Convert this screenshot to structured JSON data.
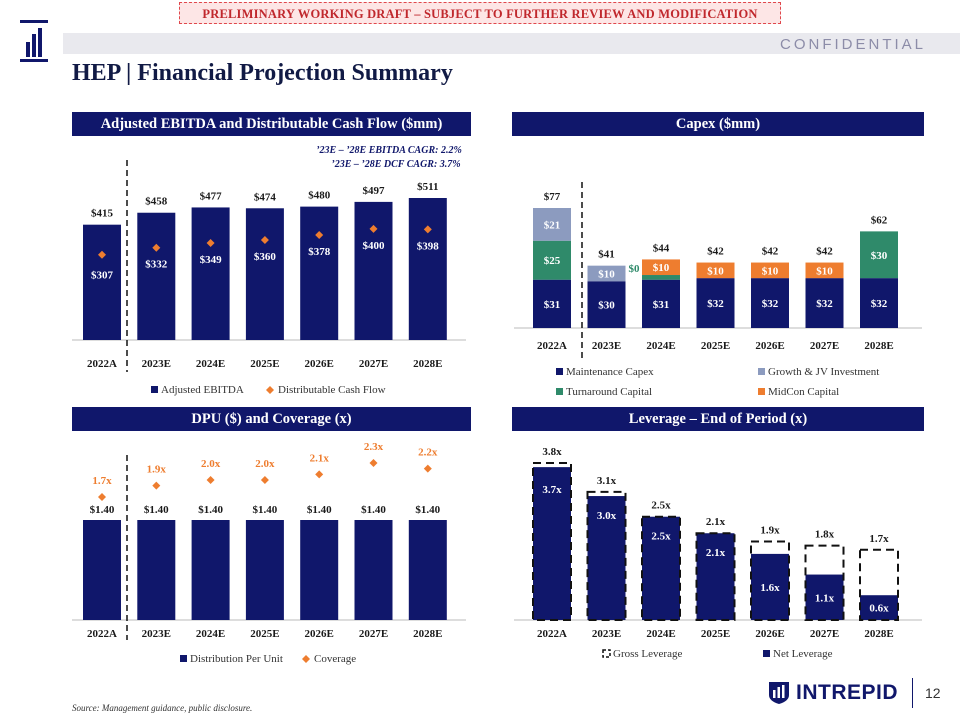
{
  "banner": "PRELIMINARY WORKING DRAFT – SUBJECT TO FURTHER REVIEW AND MODIFICATION",
  "confidential": "CONFIDENTIAL",
  "title": "HEP | Financial Projection Summary",
  "source_note": "Source: Management guidance, public disclosure.",
  "brand": {
    "name": "INTREPID",
    "page": "12"
  },
  "colors": {
    "navy": "#10176b",
    "orange": "#ee7d2f",
    "green": "#2f8a6a",
    "gray": "#8c9bbf",
    "header": "#10176b"
  },
  "panels": {
    "ebitda": "Adjusted EBITDA and Distributable Cash Flow ($mm)",
    "capex": "Capex ($mm)",
    "dpu": "DPU ($) and Coverage (x)",
    "leverage": "Leverage – End of Period (x)"
  },
  "chart_data": [
    {
      "id": "ebitda",
      "type": "bar",
      "title": "Adjusted EBITDA and Distributable Cash Flow ($mm)",
      "categories": [
        "2022A",
        "2023E",
        "2024E",
        "2025E",
        "2026E",
        "2027E",
        "2028E"
      ],
      "series": [
        {
          "name": "Adjusted EBITDA",
          "kind": "bar",
          "values": [
            415,
            458,
            477,
            474,
            480,
            497,
            511
          ],
          "labels": [
            "$415",
            "$458",
            "$477",
            "$474",
            "$480",
            "$497",
            "$511"
          ]
        },
        {
          "name": "Distributable Cash Flow",
          "kind": "marker",
          "values": [
            307,
            332,
            349,
            360,
            378,
            400,
            398
          ],
          "labels": [
            "$307",
            "$332",
            "$349",
            "$360",
            "$378",
            "$400",
            "$398"
          ]
        }
      ],
      "annotations": [
        "’23E – ’28E EBITDA CAGR: 2.2%",
        "’23E – ’28E DCF CAGR: 3.7%"
      ],
      "ylim": [
        0,
        560
      ]
    },
    {
      "id": "capex",
      "type": "bar",
      "stacked": true,
      "title": "Capex ($mm)",
      "categories": [
        "2022A",
        "2023E",
        "2024E",
        "2025E",
        "2026E",
        "2027E",
        "2028E"
      ],
      "series": [
        {
          "name": "Maintenance Capex",
          "values": [
            31,
            30,
            31,
            32,
            32,
            32,
            32
          ]
        },
        {
          "name": "Growth & JV Investment",
          "values": [
            21,
            10,
            0,
            0,
            0,
            0,
            0
          ]
        },
        {
          "name": "Turnaround Capital",
          "values": [
            25,
            0,
            3,
            0,
            0,
            0,
            30
          ]
        },
        {
          "name": "MidCon Capital",
          "values": [
            0,
            0,
            10,
            10,
            10,
            10,
            0
          ]
        }
      ],
      "segment_labels": [
        [
          "$31",
          "$21",
          "$25",
          ""
        ],
        [
          "$30",
          "$10",
          "",
          ""
        ],
        [
          "$31",
          "",
          "$3",
          "$10"
        ],
        [
          "$32",
          "",
          "",
          "$10"
        ],
        [
          "$32",
          "",
          "",
          "$10"
        ],
        [
          "$32",
          "",
          "",
          "$10"
        ],
        [
          "$32",
          "",
          "$30",
          ""
        ]
      ],
      "totals": [
        "$77",
        "$41",
        "$44",
        "$42",
        "$42",
        "$42",
        "$62"
      ],
      "zero_label": "$0",
      "ylim": [
        0,
        90
      ]
    },
    {
      "id": "dpu",
      "type": "bar",
      "title": "DPU ($) and Coverage (x)",
      "categories": [
        "2022A",
        "2023E",
        "2024E",
        "2025E",
        "2026E",
        "2027E",
        "2028E"
      ],
      "series": [
        {
          "name": "Distribution Per Unit",
          "kind": "bar",
          "values": [
            1.4,
            1.4,
            1.4,
            1.4,
            1.4,
            1.4,
            1.4
          ],
          "labels": [
            "$1.40",
            "$1.40",
            "$1.40",
            "$1.40",
            "$1.40",
            "$1.40",
            "$1.40"
          ]
        },
        {
          "name": "Coverage",
          "kind": "marker",
          "values": [
            1.7,
            1.9,
            2.0,
            2.0,
            2.1,
            2.3,
            2.2
          ],
          "labels": [
            "1.7x",
            "1.9x",
            "2.0x",
            "2.0x",
            "2.1x",
            "2.3x",
            "2.2x"
          ]
        }
      ]
    },
    {
      "id": "leverage",
      "type": "bar",
      "title": "Leverage – End of Period (x)",
      "categories": [
        "2022A",
        "2023E",
        "2024E",
        "2025E",
        "2026E",
        "2027E",
        "2028E"
      ],
      "series": [
        {
          "name": "Gross Leverage",
          "kind": "outline",
          "values": [
            3.8,
            3.1,
            2.5,
            2.1,
            1.9,
            1.8,
            1.7
          ],
          "labels": [
            "3.8x",
            "3.1x",
            "2.5x",
            "2.1x",
            "1.9x",
            "1.8x",
            "1.7x"
          ]
        },
        {
          "name": "Net Leverage",
          "kind": "bar",
          "values": [
            3.7,
            3.0,
            2.5,
            2.1,
            1.6,
            1.1,
            0.6
          ],
          "labels": [
            "3.7x",
            "3.0x",
            "2.5x",
            "2.1x",
            "1.6x",
            "1.1x",
            "0.6x"
          ]
        }
      ],
      "ylim": [
        0,
        4.2
      ]
    }
  ]
}
